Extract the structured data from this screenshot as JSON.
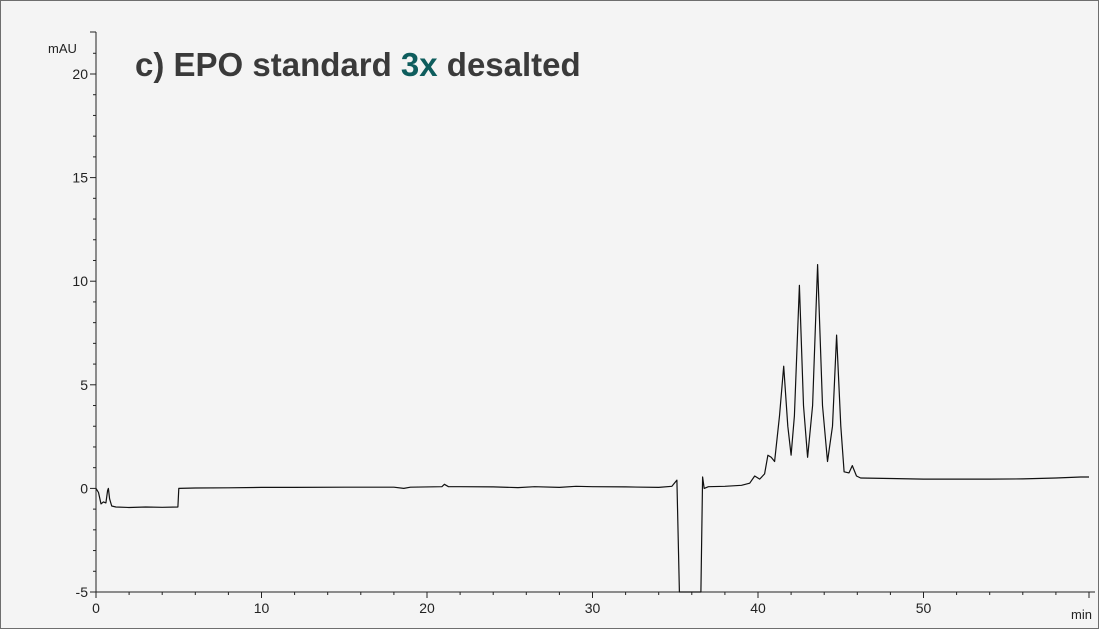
{
  "chart_data": {
    "type": "line",
    "title_parts": [
      {
        "text": "c)    EPO standard ",
        "color": "#3a3a3a"
      },
      {
        "text": "3x",
        "color": "#0e5d5d"
      },
      {
        "text": " desalted",
        "color": "#3a3a3a"
      }
    ],
    "ylabel": "mAU",
    "xlabel": "min",
    "xlim": [
      0,
      60
    ],
    "ylim": [
      -5,
      20
    ],
    "x_ticks": [
      0,
      10,
      20,
      30,
      40,
      50
    ],
    "y_ticks": [
      -5,
      0,
      5,
      10,
      15,
      20
    ],
    "grid": false,
    "line_color": "#111111",
    "series": [
      {
        "points": [
          [
            0,
            0
          ],
          [
            0.15,
            -0.2
          ],
          [
            0.3,
            -0.75
          ],
          [
            0.45,
            -0.65
          ],
          [
            0.6,
            -0.7
          ],
          [
            0.7,
            -0.1
          ],
          [
            0.75,
            0.0
          ],
          [
            0.82,
            -0.5
          ],
          [
            0.95,
            -0.85
          ],
          [
            1.2,
            -0.9
          ],
          [
            2.0,
            -0.92
          ],
          [
            3.0,
            -0.9
          ],
          [
            4.0,
            -0.91
          ],
          [
            4.95,
            -0.9
          ],
          [
            5.0,
            0.0
          ],
          [
            6.0,
            0.02
          ],
          [
            8.0,
            0.03
          ],
          [
            10.0,
            0.05
          ],
          [
            12.0,
            0.05
          ],
          [
            15.0,
            0.06
          ],
          [
            18.0,
            0.06
          ],
          [
            18.6,
            0.0
          ],
          [
            19.0,
            0.06
          ],
          [
            20.9,
            0.08
          ],
          [
            21.05,
            0.2
          ],
          [
            21.3,
            0.08
          ],
          [
            22.0,
            0.08
          ],
          [
            24.0,
            0.07
          ],
          [
            25.5,
            0.04
          ],
          [
            26.5,
            0.08
          ],
          [
            28.0,
            0.05
          ],
          [
            29.0,
            0.1
          ],
          [
            30.0,
            0.08
          ],
          [
            32.0,
            0.07
          ],
          [
            34.0,
            0.05
          ],
          [
            34.8,
            0.1
          ],
          [
            35.1,
            0.4
          ],
          [
            35.25,
            -5.0
          ],
          [
            36.55,
            -5.0
          ],
          [
            36.65,
            0.55
          ],
          [
            36.75,
            0.0
          ],
          [
            37.0,
            0.08
          ],
          [
            38.0,
            0.1
          ],
          [
            39.0,
            0.15
          ],
          [
            39.5,
            0.25
          ],
          [
            39.8,
            0.6
          ],
          [
            40.1,
            0.45
          ],
          [
            40.4,
            0.7
          ],
          [
            40.6,
            1.6
          ],
          [
            40.8,
            1.5
          ],
          [
            41.0,
            1.3
          ],
          [
            41.3,
            3.5
          ],
          [
            41.55,
            5.9
          ],
          [
            41.8,
            3.0
          ],
          [
            42.0,
            1.6
          ],
          [
            42.2,
            3.5
          ],
          [
            42.5,
            9.8
          ],
          [
            42.75,
            4.0
          ],
          [
            43.0,
            1.5
          ],
          [
            43.3,
            4.0
          ],
          [
            43.6,
            10.8
          ],
          [
            43.9,
            4.0
          ],
          [
            44.2,
            1.3
          ],
          [
            44.5,
            3.0
          ],
          [
            44.75,
            7.4
          ],
          [
            45.0,
            3.0
          ],
          [
            45.2,
            0.8
          ],
          [
            45.5,
            0.75
          ],
          [
            45.7,
            1.1
          ],
          [
            45.95,
            0.6
          ],
          [
            46.2,
            0.5
          ],
          [
            48.0,
            0.48
          ],
          [
            50.0,
            0.45
          ],
          [
            52.0,
            0.45
          ],
          [
            54.0,
            0.45
          ],
          [
            56.0,
            0.46
          ],
          [
            58.0,
            0.5
          ],
          [
            59.5,
            0.55
          ],
          [
            60.0,
            0.55
          ]
        ]
      }
    ]
  }
}
